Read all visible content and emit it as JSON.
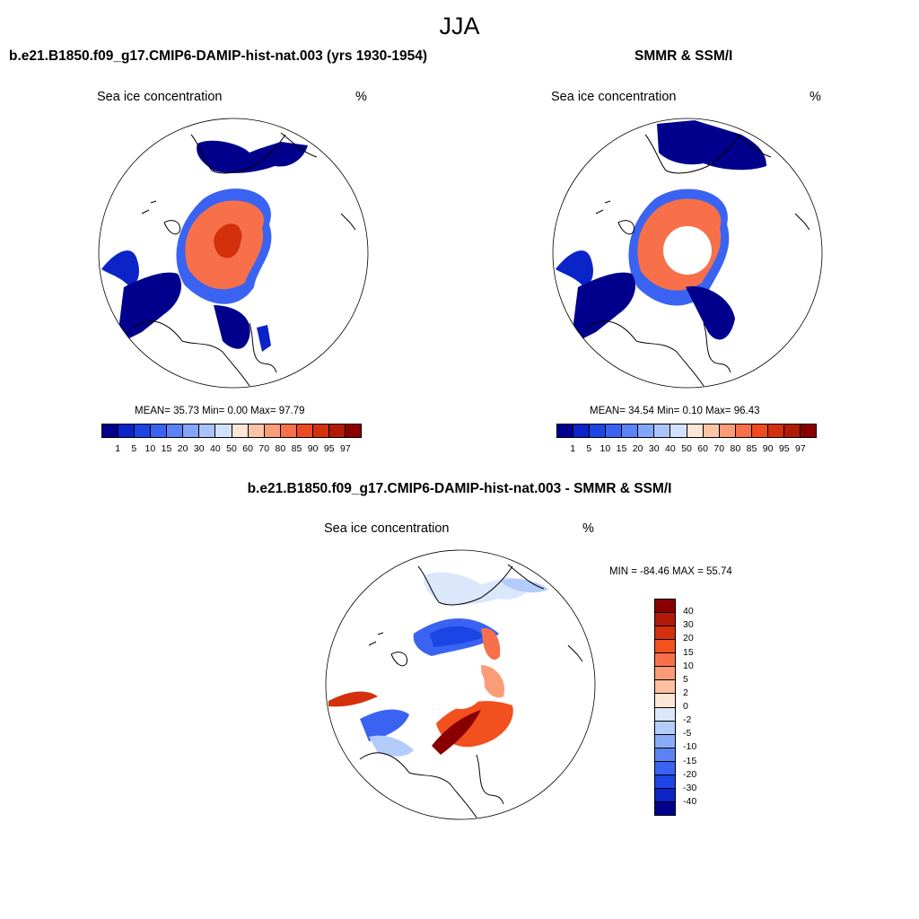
{
  "figure": {
    "season": "JJA"
  },
  "panels": [
    {
      "title": "b.e21.B1850.f09_g17.CMIP6-DAMIP-hist-nat.003 (yrs 1930-1954)",
      "left_label": "Sea ice concentration",
      "right_label": "%",
      "stats": "MEAN=  35.73  Min=   0.00  Max=  97.79"
    },
    {
      "title": "SMMR & SSM/I",
      "left_label": "Sea ice concentration",
      "right_label": "%",
      "stats": "MEAN=  34.54  Min=   0.10  Max=  96.43"
    },
    {
      "title": "b.e21.B1850.f09_g17.CMIP6-DAMIP-hist-nat.003 - SMMR & SSM/I",
      "left_label": "Sea ice concentration",
      "right_label": "%",
      "stats": "MIN = -84.46 MAX =  55.74"
    }
  ],
  "colorbar_abs": {
    "ticks": [
      "1",
      "5",
      "10",
      "15",
      "20",
      "30",
      "40",
      "50",
      "60",
      "70",
      "80",
      "85",
      "90",
      "95",
      "97"
    ],
    "colors": [
      "#00008c",
      "#0b24c8",
      "#1c45e6",
      "#3a63f2",
      "#5c83f6",
      "#84a6f8",
      "#aac4fa",
      "#d2e2fc",
      "#fde6d6",
      "#fcc4a6",
      "#fb9c78",
      "#f8704a",
      "#ee4a1e",
      "#d4300c",
      "#b01a06",
      "#8a0000"
    ]
  },
  "colorbar_diff": {
    "ticks": [
      "40",
      "30",
      "20",
      "15",
      "10",
      "5",
      "2",
      "0",
      "-2",
      "-5",
      "-10",
      "-15",
      "-20",
      "-30",
      "-40"
    ],
    "colors": [
      "#8a0000",
      "#b01a06",
      "#d4300c",
      "#f2501e",
      "#f8704a",
      "#fb9c78",
      "#fcc0a0",
      "#fde6d6",
      "#dbe8fc",
      "#b4ccfa",
      "#8aacf8",
      "#5c83f6",
      "#3a63f2",
      "#1c45e6",
      "#0b24c8",
      "#00008c"
    ]
  },
  "chart_data": [
    {
      "type": "heatmap",
      "title": "b.e21.B1850.f09_g17.CMIP6-DAMIP-hist-nat.003 (yrs 1930-1954)",
      "variable": "Sea ice concentration",
      "units": "%",
      "mean": 35.73,
      "min": 0.0,
      "max": 97.79,
      "levels": [
        1,
        5,
        10,
        15,
        20,
        30,
        40,
        50,
        60,
        70,
        80,
        85,
        90,
        95,
        97
      ]
    },
    {
      "type": "heatmap",
      "title": "SMMR & SSM/I",
      "variable": "Sea ice concentration",
      "units": "%",
      "mean": 34.54,
      "min": 0.1,
      "max": 96.43,
      "levels": [
        1,
        5,
        10,
        15,
        20,
        30,
        40,
        50,
        60,
        70,
        80,
        85,
        90,
        95,
        97
      ]
    },
    {
      "type": "heatmap",
      "title": "b.e21.B1850.f09_g17.CMIP6-DAMIP-hist-nat.003 - SMMR & SSM/I",
      "variable": "Sea ice concentration",
      "units": "%",
      "min": -84.46,
      "max": 55.74,
      "levels": [
        40,
        30,
        20,
        15,
        10,
        5,
        2,
        0,
        -2,
        -5,
        -10,
        -15,
        -20,
        -30,
        -40
      ]
    }
  ]
}
